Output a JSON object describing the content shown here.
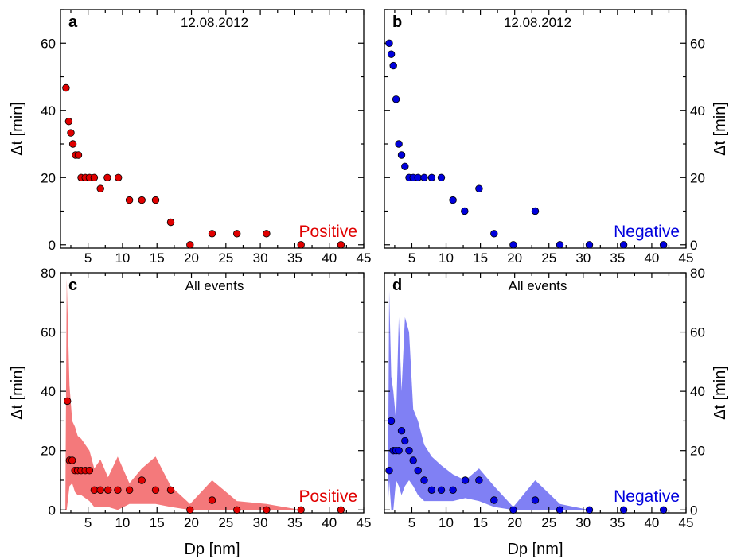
{
  "chart_data": [
    {
      "id": "a",
      "type": "scatter",
      "panel_label": "a",
      "title": "12.08.2012",
      "polarity": "Positive",
      "color": "#e00000",
      "ylabel": "Δt [min]",
      "xlabel": "",
      "xlim": [
        1,
        45
      ],
      "ylim": [
        -1,
        70
      ],
      "xticks": [
        5,
        10,
        15,
        20,
        25,
        30,
        35,
        40,
        45
      ],
      "yticks": [
        0,
        20,
        40,
        60
      ],
      "y_axis_side": "left",
      "x": [
        1.8,
        2.2,
        2.5,
        2.8,
        3.2,
        3.6,
        4.0,
        4.6,
        5.2,
        5.9,
        6.8,
        7.8,
        9.4,
        11.0,
        12.8,
        14.8,
        17.0,
        19.8,
        23.0,
        26.6,
        30.9,
        35.9,
        41.7
      ],
      "y": [
        46.7,
        36.7,
        33.3,
        30.0,
        26.7,
        26.7,
        20.0,
        20.0,
        20.0,
        20.0,
        16.7,
        20.0,
        20.0,
        13.3,
        13.3,
        13.3,
        6.7,
        0,
        3.3,
        3.3,
        3.3,
        0,
        0
      ],
      "band": null
    },
    {
      "id": "b",
      "type": "scatter",
      "panel_label": "b",
      "title": "12.08.2012",
      "polarity": "Negative",
      "color": "#0000dd",
      "ylabel": "Δt [min]",
      "xlabel": "",
      "xlim": [
        1,
        45
      ],
      "ylim": [
        -1,
        70
      ],
      "xticks": [
        5,
        10,
        15,
        20,
        25,
        30,
        35,
        40,
        45
      ],
      "yticks": [
        0,
        20,
        40,
        60
      ],
      "y_axis_side": "right",
      "x": [
        1.7,
        2.0,
        2.3,
        2.7,
        3.1,
        3.5,
        4.0,
        4.6,
        5.2,
        5.9,
        6.8,
        7.9,
        9.3,
        11.0,
        12.7,
        14.8,
        17.0,
        19.8,
        23.0,
        26.6,
        30.9,
        35.9,
        41.7
      ],
      "y": [
        60.0,
        56.7,
        53.3,
        43.3,
        30.0,
        26.7,
        23.3,
        20.0,
        20.0,
        20.0,
        20.0,
        20.0,
        20.0,
        13.3,
        10.0,
        16.7,
        3.3,
        0,
        10.0,
        0,
        0,
        0,
        0
      ],
      "band": null
    },
    {
      "id": "c",
      "type": "scatter",
      "panel_label": "c",
      "title": "All events",
      "polarity": "Positive",
      "color": "#e00000",
      "band_color": "#f4797b",
      "ylabel": "Δt [min]",
      "xlabel": "Dp [nm]",
      "xlim": [
        1,
        45
      ],
      "ylim": [
        -1,
        80
      ],
      "xticks": [
        5,
        10,
        15,
        20,
        25,
        30,
        35,
        40,
        45
      ],
      "yticks": [
        0,
        20,
        40,
        60,
        80
      ],
      "y_axis_side": "left",
      "x": [
        2.0,
        2.3,
        2.7,
        3.1,
        3.5,
        4.0,
        4.6,
        5.2,
        5.9,
        6.8,
        7.9,
        9.3,
        11.0,
        12.8,
        14.8,
        17.0,
        19.8,
        23.0,
        26.6,
        30.9,
        35.9,
        41.7
      ],
      "y": [
        36.7,
        16.7,
        16.7,
        13.3,
        13.3,
        13.3,
        13.3,
        13.3,
        6.7,
        6.7,
        6.7,
        6.7,
        6.7,
        10.0,
        6.7,
        6.7,
        0,
        3.3,
        0,
        0,
        0,
        0
      ],
      "band": {
        "x": [
          1.7,
          1.9,
          2.3,
          2.7,
          3.1,
          3.5,
          4.0,
          4.6,
          5.2,
          5.9,
          6.8,
          7.9,
          9.3,
          11.0,
          12.8,
          14.8,
          17.0,
          19.8,
          23.0,
          26.6,
          30.9,
          35.9,
          41.7
        ],
        "upper": [
          0,
          78,
          42,
          30,
          28,
          25,
          24,
          22,
          20,
          14,
          17,
          11,
          18,
          9,
          14,
          18,
          8,
          2,
          10,
          3,
          2,
          0,
          0
        ],
        "lower": [
          0,
          0,
          8,
          9,
          6,
          5,
          5,
          4,
          3,
          1,
          1,
          1,
          0,
          2,
          2,
          2,
          1,
          0,
          0,
          0,
          0,
          0,
          0
        ]
      }
    },
    {
      "id": "d",
      "type": "scatter",
      "panel_label": "d",
      "title": "All events",
      "polarity": "Negative",
      "color": "#0000dd",
      "band_color": "#8080f4",
      "ylabel": "Δt [min]",
      "xlabel": "Dp [nm]",
      "xlim": [
        1,
        45
      ],
      "ylim": [
        -1,
        80
      ],
      "xticks": [
        5,
        10,
        15,
        20,
        25,
        30,
        35,
        40,
        45
      ],
      "yticks": [
        0,
        20,
        40,
        60,
        80
      ],
      "y_axis_side": "right",
      "x": [
        1.7,
        2.0,
        2.3,
        2.7,
        3.1,
        3.5,
        4.0,
        4.6,
        5.2,
        5.9,
        6.8,
        7.9,
        9.3,
        11.0,
        12.8,
        14.8,
        17.0,
        19.8,
        23.0,
        26.6,
        30.9,
        35.9,
        41.7
      ],
      "y": [
        13.3,
        30.0,
        20.0,
        20.0,
        20.0,
        26.7,
        23.3,
        20.0,
        16.7,
        13.3,
        10.0,
        6.7,
        6.7,
        6.7,
        10.0,
        10.0,
        3.3,
        0,
        3.3,
        0,
        0,
        0,
        0
      ],
      "band": {
        "x": [
          1.5,
          1.7,
          2.0,
          2.3,
          2.7,
          3.1,
          3.5,
          4.0,
          4.6,
          5.2,
          5.9,
          6.8,
          7.9,
          9.3,
          11.0,
          12.8,
          14.8,
          17.0,
          19.8,
          23.0,
          26.6,
          30.9,
          35.9,
          41.7
        ],
        "upper": [
          0,
          74,
          45,
          40,
          30,
          65,
          40,
          65,
          60,
          34,
          30,
          22,
          18,
          15,
          12,
          10,
          14,
          8,
          1,
          10,
          2,
          0,
          0,
          0
        ],
        "lower": [
          0,
          10,
          0,
          0,
          10,
          8,
          5,
          8,
          10,
          8,
          5,
          3,
          3,
          3,
          3,
          4,
          3,
          1,
          0,
          0,
          0,
          0,
          0,
          0
        ]
      }
    }
  ]
}
